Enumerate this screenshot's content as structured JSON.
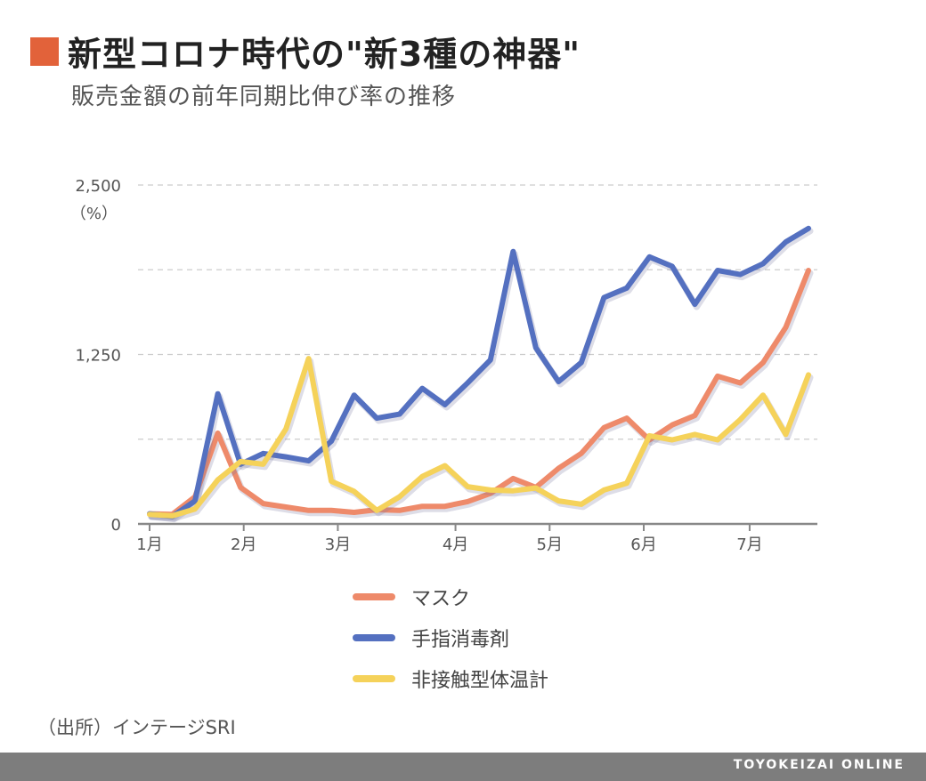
{
  "header": {
    "title": "新型コロナ時代の\"新3種の神器\"",
    "subtitle": "販売金額の前年同期比伸び率の推移"
  },
  "footer": {
    "source": "（出所）インテージSRI",
    "brand": "TOYOKEIZAI ONLINE"
  },
  "colors": {
    "accent": "#e2623a",
    "mask": "#ee8a6a",
    "sanitizer": "#5470c0",
    "thermometer": "#f5d25a",
    "axis": "#888888",
    "grid": "#cccccc"
  },
  "chart_data": {
    "type": "line",
    "title": "新型コロナ時代の\"新3種の神器\"",
    "subtitle": "販売金額の前年同期比伸び率の推移",
    "ylabel": "（%）",
    "ylim": [
      0,
      2500
    ],
    "yticks": [
      {
        "value": 0,
        "label": "0"
      },
      {
        "value": 1250,
        "label": "1,250"
      },
      {
        "value": 2500,
        "label": "2,500"
      }
    ],
    "ygrid": [
      625,
      1250,
      1875,
      2500
    ],
    "x_index_range": [
      0,
      28
    ],
    "xticks": [
      {
        "index": 0,
        "label": "1月"
      },
      {
        "index": 4,
        "label": "2月"
      },
      {
        "index": 8,
        "label": "3月"
      },
      {
        "index": 13,
        "label": "4月"
      },
      {
        "index": 17,
        "label": "5月"
      },
      {
        "index": 21,
        "label": "6月"
      },
      {
        "index": 25.5,
        "label": "7月"
      }
    ],
    "grid": true,
    "legend_position": "bottom",
    "series": [
      {
        "name": "マスク",
        "key": "mask",
        "values": [
          75,
          70,
          200,
          670,
          270,
          150,
          125,
          100,
          100,
          85,
          105,
          100,
          130,
          130,
          165,
          225,
          335,
          270,
          410,
          520,
          710,
          780,
          620,
          730,
          800,
          1090,
          1040,
          1190,
          1450,
          1870
        ]
      },
      {
        "name": "手指消毒剤",
        "key": "sanitizer",
        "values": [
          75,
          55,
          170,
          960,
          440,
          520,
          495,
          465,
          610,
          950,
          780,
          810,
          1000,
          880,
          1040,
          1210,
          2010,
          1300,
          1050,
          1190,
          1670,
          1740,
          1970,
          1900,
          1620,
          1870,
          1840,
          1920,
          2080,
          2180
        ]
      },
      {
        "name": "非接触型体温計",
        "key": "thermometer",
        "values": [
          70,
          60,
          110,
          325,
          460,
          440,
          700,
          1220,
          315,
          240,
          100,
          200,
          350,
          430,
          275,
          250,
          245,
          265,
          170,
          145,
          250,
          300,
          650,
          620,
          660,
          620,
          770,
          950,
          660,
          1100
        ]
      }
    ]
  }
}
